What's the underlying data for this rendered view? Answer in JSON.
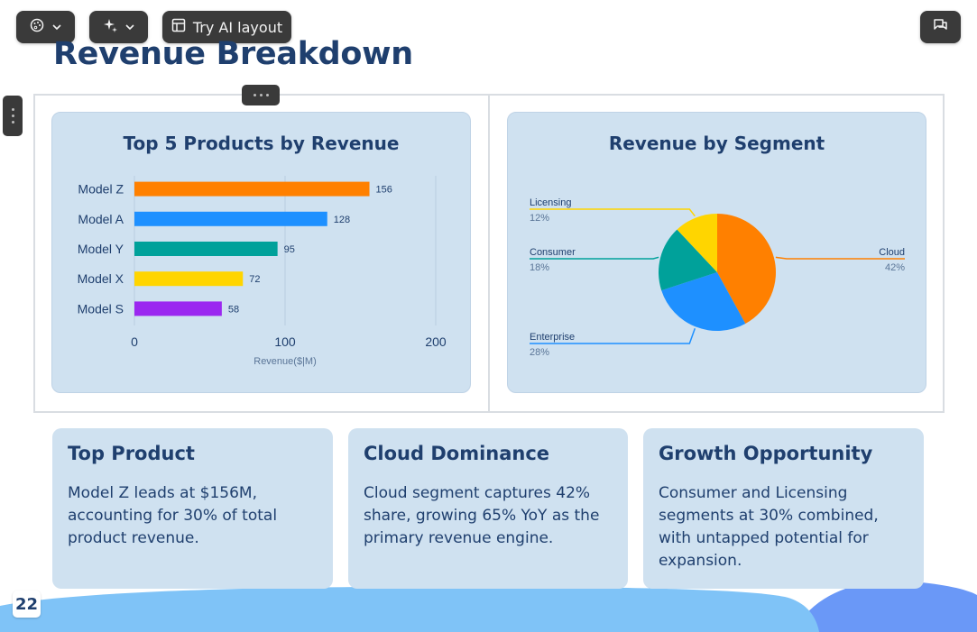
{
  "toolbar": {
    "theme_icon": "palette-icon",
    "magic_icon": "sparkle-icon",
    "ai_layout_label": "Try AI layout",
    "ai_layout_icon": "layout-icon",
    "chat_icon": "chat-icon"
  },
  "page_title": "Revenue Breakdown",
  "page_number": "22",
  "colors": {
    "title": "#1f3f6e",
    "card_bg": "#cfe1f0",
    "wave_light": "#7fc3f7",
    "wave_dark": "#6a98f7"
  },
  "chart_data": [
    {
      "type": "bar",
      "orientation": "horizontal",
      "title": "Top 5 Products by Revenue",
      "categories": [
        "Model Z",
        "Model A",
        "Model Y",
        "Model X",
        "Model S"
      ],
      "values": [
        156,
        128,
        95,
        72,
        58
      ],
      "colors": [
        "#ff8000",
        "#1e90ff",
        "#00a19a",
        "#ffd500",
        "#9b27f0"
      ],
      "xlabel": "Revenue($|M)",
      "xlim": [
        0,
        200
      ],
      "xticks": [
        "0",
        "100",
        "200"
      ],
      "grid": true
    },
    {
      "type": "pie",
      "title": "Revenue by Segment",
      "labels": [
        "Cloud",
        "Enterprise",
        "Consumer",
        "Licensing"
      ],
      "values": [
        42,
        28,
        18,
        12
      ],
      "value_labels": [
        "42%",
        "28%",
        "18%",
        "12%"
      ],
      "colors": [
        "#ff8000",
        "#1e90ff",
        "#00a19a",
        "#ffd500"
      ]
    }
  ],
  "insights": [
    {
      "title": "Top Product",
      "text": "Model Z leads at $156M, accounting for 30% of total product revenue."
    },
    {
      "title": "Cloud Dominance",
      "text": "Cloud segment captures 42% share, growing 65% YoY as the primary revenue engine."
    },
    {
      "title": "Growth Opportunity",
      "text": "Consumer and Licensing segments at 30% combined, with untapped potential for expansion."
    }
  ]
}
